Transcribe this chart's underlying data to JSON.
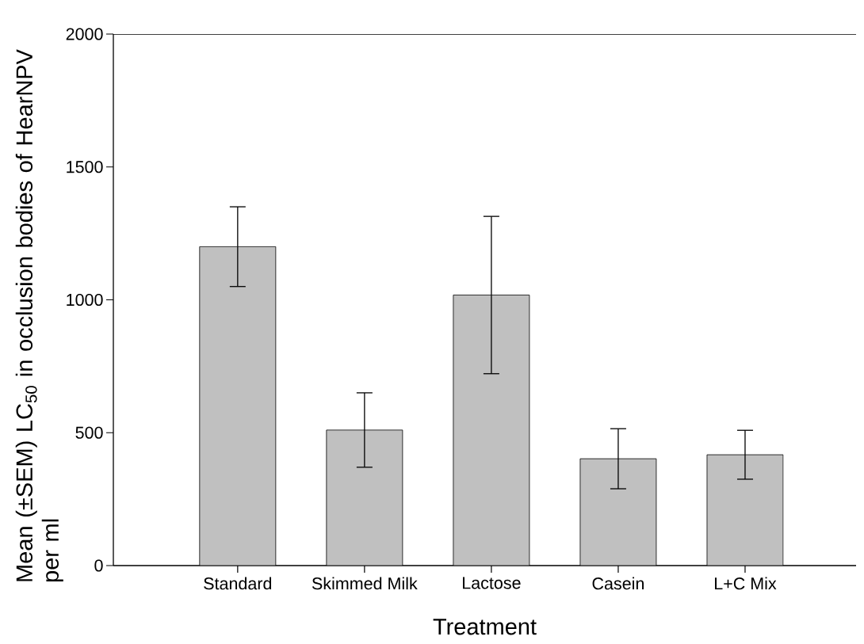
{
  "chart_data": {
    "type": "bar",
    "xlabel": "Treatment",
    "ylabel": "Mean (±SEM) LC$_{50}$ in occlusion bodies of HearNPV per ml",
    "categories": [
      "Standard",
      "Skimmed Milk",
      "Lactose",
      "Casein",
      "L+C Mix"
    ],
    "values": [
      1200,
      510,
      1018,
      402,
      417
    ],
    "errors": [
      150,
      140,
      296,
      113,
      92
    ],
    "color": "#c0c0c0",
    "ylim": [
      0,
      2000
    ],
    "yticks": [
      0,
      500,
      1000,
      1500,
      2000
    ],
    "grid": false
  }
}
